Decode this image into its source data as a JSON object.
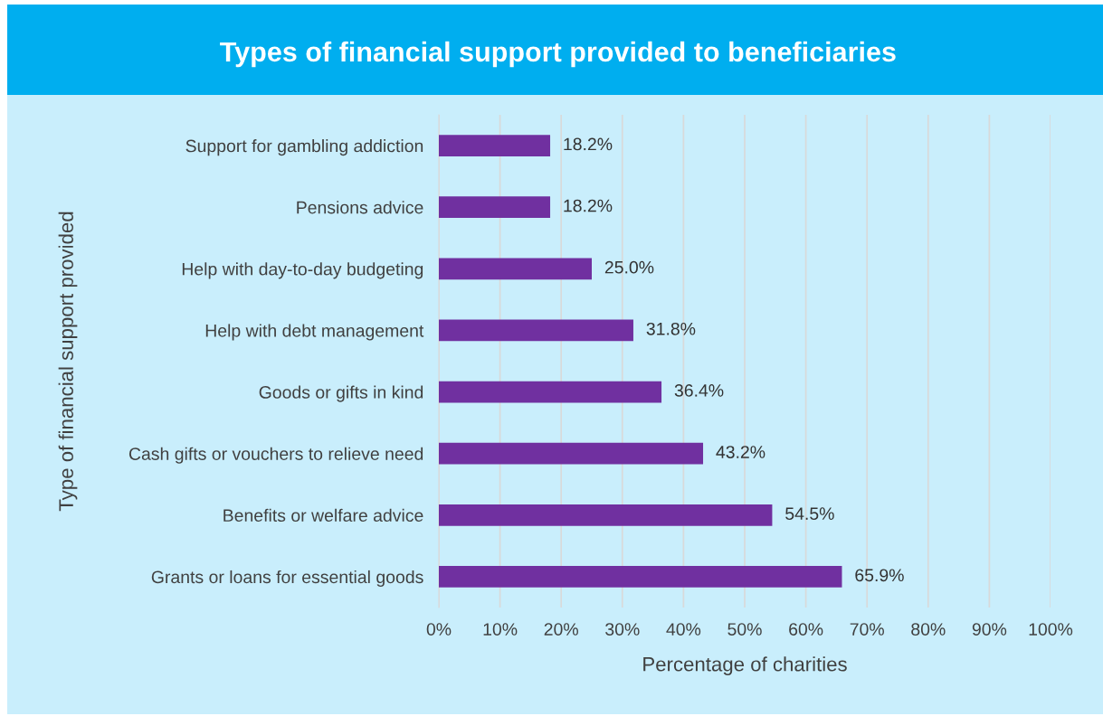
{
  "chart_data": {
    "type": "bar",
    "orientation": "horizontal",
    "title": "Types of financial support provided to beneficiaries",
    "xlabel": "Percentage of charities",
    "ylabel": "Type of financial support provided",
    "categories": [
      "Support for gambling addiction",
      "Pensions advice",
      "Help with day-to-day budgeting",
      "Help with debt management",
      "Goods or gifts in kind",
      "Cash gifts or vouchers to relieve need",
      "Benefits or welfare advice",
      "Grants or loans for essential goods"
    ],
    "values": [
      18.2,
      18.2,
      25.0,
      31.8,
      36.4,
      43.2,
      54.5,
      65.9
    ],
    "value_labels": [
      "18.2%",
      "18.2%",
      "25.0%",
      "31.8%",
      "36.4%",
      "43.2%",
      "54.5%",
      "65.9%"
    ],
    "color": "#7030a0",
    "xlim": [
      0,
      100
    ],
    "xticks": [
      {
        "value": 0,
        "label": "0%"
      },
      {
        "value": 10,
        "label": "10%"
      },
      {
        "value": 20,
        "label": "20%"
      },
      {
        "value": 30,
        "label": "30%"
      },
      {
        "value": 40,
        "label": "40%"
      },
      {
        "value": 50,
        "label": "50%"
      },
      {
        "value": 60,
        "label": "60%"
      },
      {
        "value": 70,
        "label": "70%"
      },
      {
        "value": 80,
        "label": "80%"
      },
      {
        "value": 90,
        "label": "90%"
      },
      {
        "value": 100,
        "label": "100%"
      }
    ],
    "grid": "x",
    "legend": false
  }
}
